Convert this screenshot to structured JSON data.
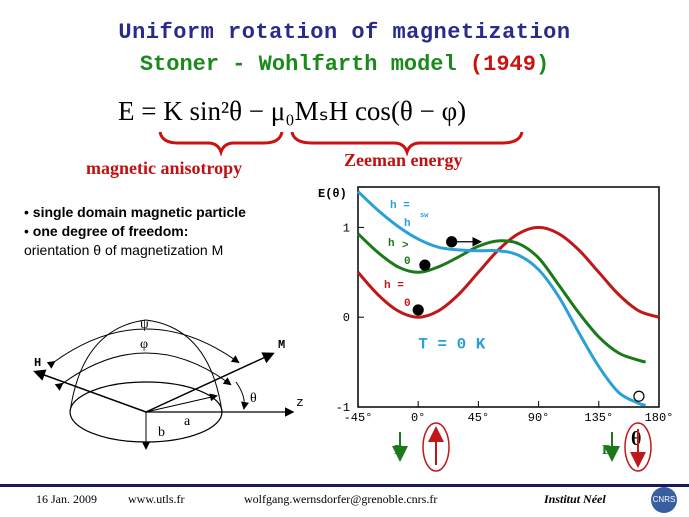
{
  "title": {
    "line1": "Uniform rotation of magnetization",
    "line2_main": "Stoner - Wohlfarth model",
    "line2_year": "(1949",
    "line2_close": ")"
  },
  "formula": {
    "text": "E = K sin²θ − μ₀MₛH cos(θ − φ)"
  },
  "labels": {
    "anisotropy": "magnetic anisotropy",
    "zeeman": "Zeeman energy"
  },
  "bullets": {
    "b1": "single domain magnetic particle",
    "b2": "one degree of freedom:",
    "b3": "orientation θ  of magnetization M"
  },
  "sketch": {
    "psi": "ψ",
    "phi": "φ",
    "H": "H",
    "M": "M",
    "theta": "θ",
    "z": "z",
    "a": "a",
    "b": "b"
  },
  "chart_data": {
    "type": "line",
    "ylabel": "E(θ)",
    "xlabel": "θ",
    "xlim": [
      -45,
      180
    ],
    "ylim": [
      -1,
      1.45
    ],
    "x_ticks": [
      "-45°",
      "0°",
      "45°",
      "90°",
      "135°",
      "180°"
    ],
    "x_tick_values": [
      -45,
      0,
      45,
      90,
      135,
      180
    ],
    "y_ticks": [
      "1",
      "0",
      "-1"
    ],
    "y_tick_values": [
      1,
      0,
      -1
    ],
    "annotation": "T = 0 K",
    "series": [
      {
        "name": "h = 0",
        "color": "#c01818",
        "x": [
          -45,
          -30,
          -15,
          0,
          15,
          30,
          45,
          60,
          75,
          90,
          105,
          120,
          135,
          150,
          165,
          180
        ],
        "y": [
          0.5,
          0.25,
          0.07,
          0.0,
          0.07,
          0.25,
          0.5,
          0.75,
          0.93,
          1.0,
          0.93,
          0.75,
          0.5,
          0.25,
          0.07,
          0.0
        ]
      },
      {
        "name": "h > 0",
        "color": "#1a7a1a",
        "x": [
          -45,
          -30,
          -15,
          0,
          15,
          30,
          45,
          60,
          75,
          90,
          105,
          120,
          135,
          150,
          165,
          170
        ],
        "y": [
          0.93,
          0.72,
          0.56,
          0.5,
          0.56,
          0.67,
          0.79,
          0.85,
          0.82,
          0.66,
          0.36,
          0.05,
          -0.22,
          -0.4,
          -0.48,
          -0.5
        ]
      },
      {
        "name": "h = h_sw",
        "color": "#2aa0d8",
        "x": [
          -45,
          -30,
          -15,
          0,
          15,
          30,
          45,
          60,
          75,
          90,
          105,
          120,
          135,
          150,
          165,
          170
        ],
        "y": [
          1.4,
          1.19,
          1.01,
          0.87,
          0.78,
          0.75,
          0.74,
          0.74,
          0.69,
          0.53,
          0.23,
          -0.17,
          -0.55,
          -0.84,
          -0.96,
          -0.98
        ]
      }
    ],
    "series_labels": {
      "hsw_a": "h =",
      "hsw_b": "h",
      "hsw_c": "sw",
      "hgt_a": "h",
      "hgt_b": ">",
      "hgt_c": "0",
      "h0_a": "h =",
      "h0_b": "0"
    },
    "markers": [
      {
        "x": 0,
        "y": 0.08,
        "filled": true
      },
      {
        "x": 5,
        "y": 0.58,
        "filled": true
      },
      {
        "x": 25,
        "y": 0.84,
        "filled": true,
        "arrow": true
      },
      {
        "x": 165,
        "y": -0.88,
        "filled": false
      }
    ],
    "B_label": "B"
  },
  "footer": {
    "date": "16 Jan. 2009",
    "site": "www.utls.fr",
    "email": "wolfgang.wernsdorfer@grenoble.cnrs.fr",
    "institute": "Institut Néel",
    "logo": "CNRS"
  }
}
